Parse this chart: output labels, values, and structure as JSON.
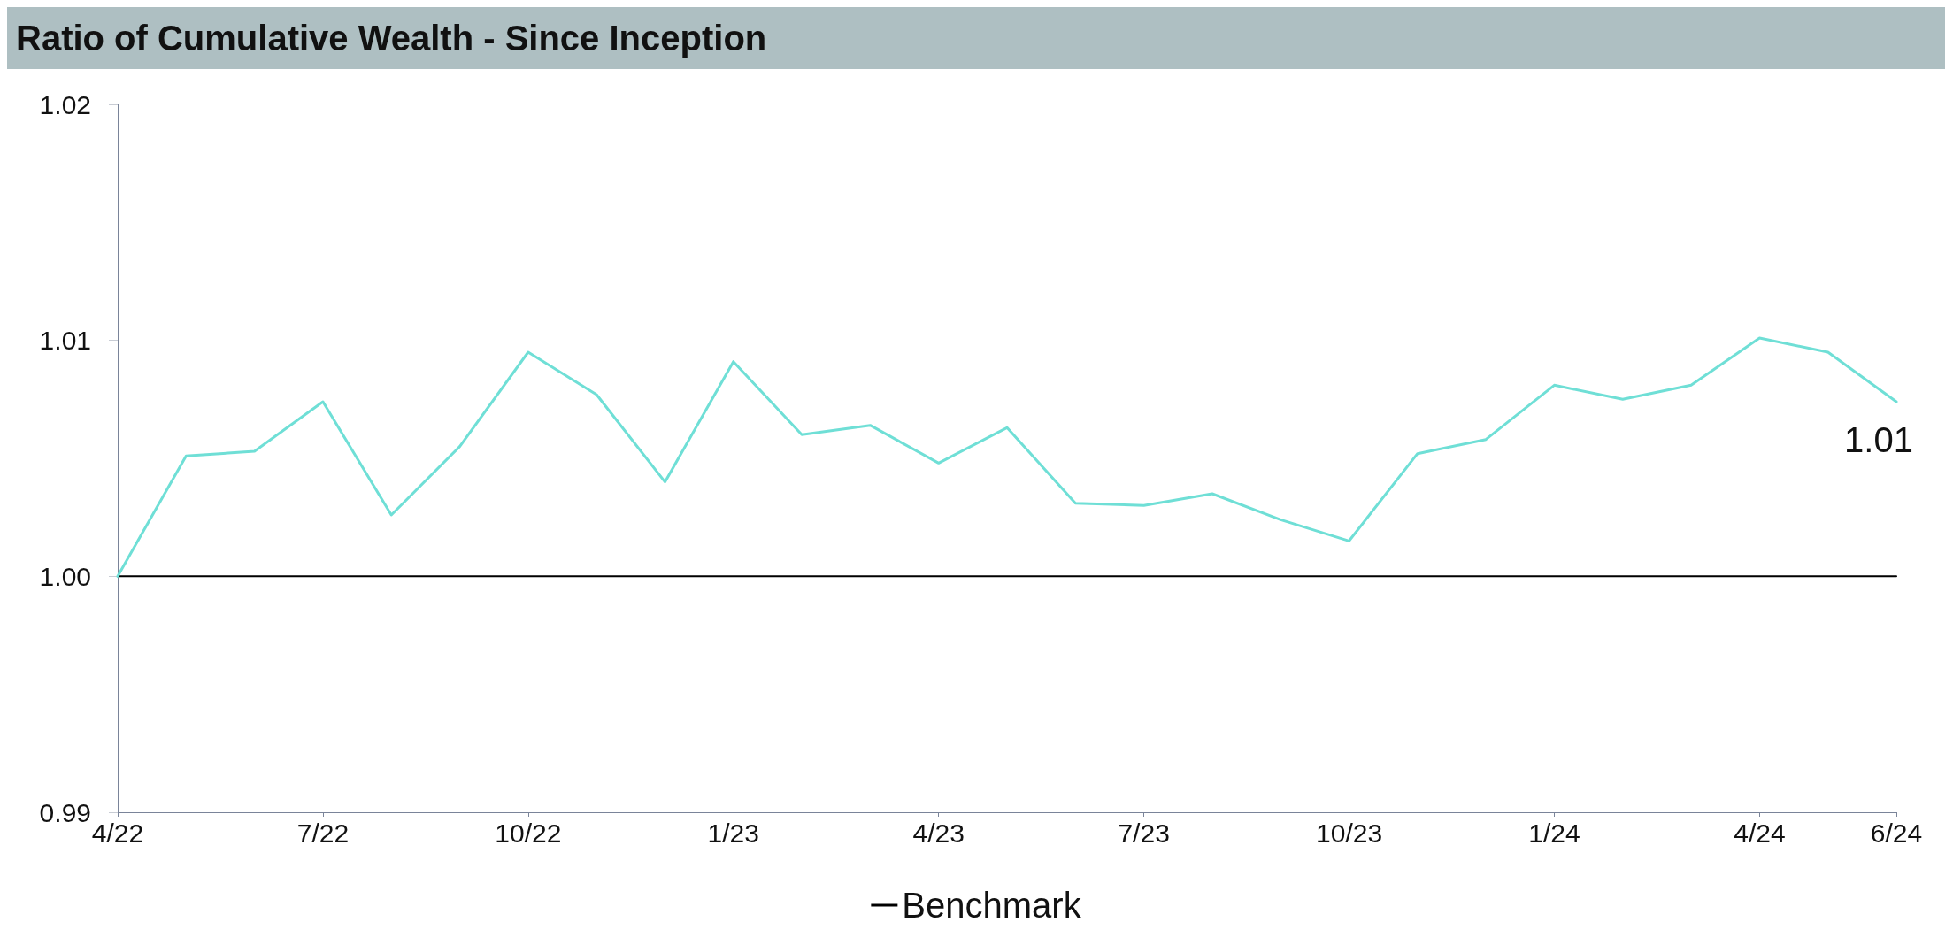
{
  "chart_data": {
    "type": "line",
    "title": "Ratio of Cumulative Wealth - Since Inception",
    "categories": [
      "4/22",
      null,
      null,
      "7/22",
      null,
      null,
      "10/22",
      null,
      null,
      "1/23",
      null,
      null,
      "4/23",
      null,
      null,
      "7/23",
      null,
      null,
      "10/23",
      null,
      null,
      "1/24",
      null,
      null,
      "4/24",
      null,
      "6/24"
    ],
    "series": [
      {
        "color": "#6fdfd6",
        "values": [
          1.0,
          1.0051,
          1.0053,
          1.0074,
          1.0026,
          1.0055,
          1.0095,
          1.0077,
          1.004,
          1.0091,
          1.006,
          1.0064,
          1.0048,
          1.0063,
          1.0031,
          1.003,
          1.0035,
          1.0024,
          1.0015,
          1.0052,
          1.0058,
          1.0081,
          1.0075,
          1.0081,
          1.0101,
          1.0095,
          1.0074
        ],
        "value_labels": [
          null,
          null,
          null,
          null,
          null,
          null,
          null,
          null,
          null,
          null,
          null,
          null,
          null,
          null,
          null,
          null,
          null,
          null,
          null,
          null,
          null,
          null,
          null,
          null,
          null,
          null,
          "1.01"
        ]
      },
      {
        "name": "Benchmark",
        "color": "#000000",
        "values": [
          1,
          1,
          1,
          1,
          1,
          1,
          1,
          1,
          1,
          1,
          1,
          1,
          1,
          1,
          1,
          1,
          1,
          1,
          1,
          1,
          1,
          1,
          1,
          1,
          1,
          1,
          1
        ]
      }
    ],
    "ylim": [
      0.99,
      1.02
    ],
    "yticks": [
      0.99,
      {
        "value": 1,
        "label": "1.00"
      },
      1.01,
      1.02
    ],
    "grid": false,
    "legend": "bottom",
    "marker": "none",
    "line_style": "solid"
  }
}
